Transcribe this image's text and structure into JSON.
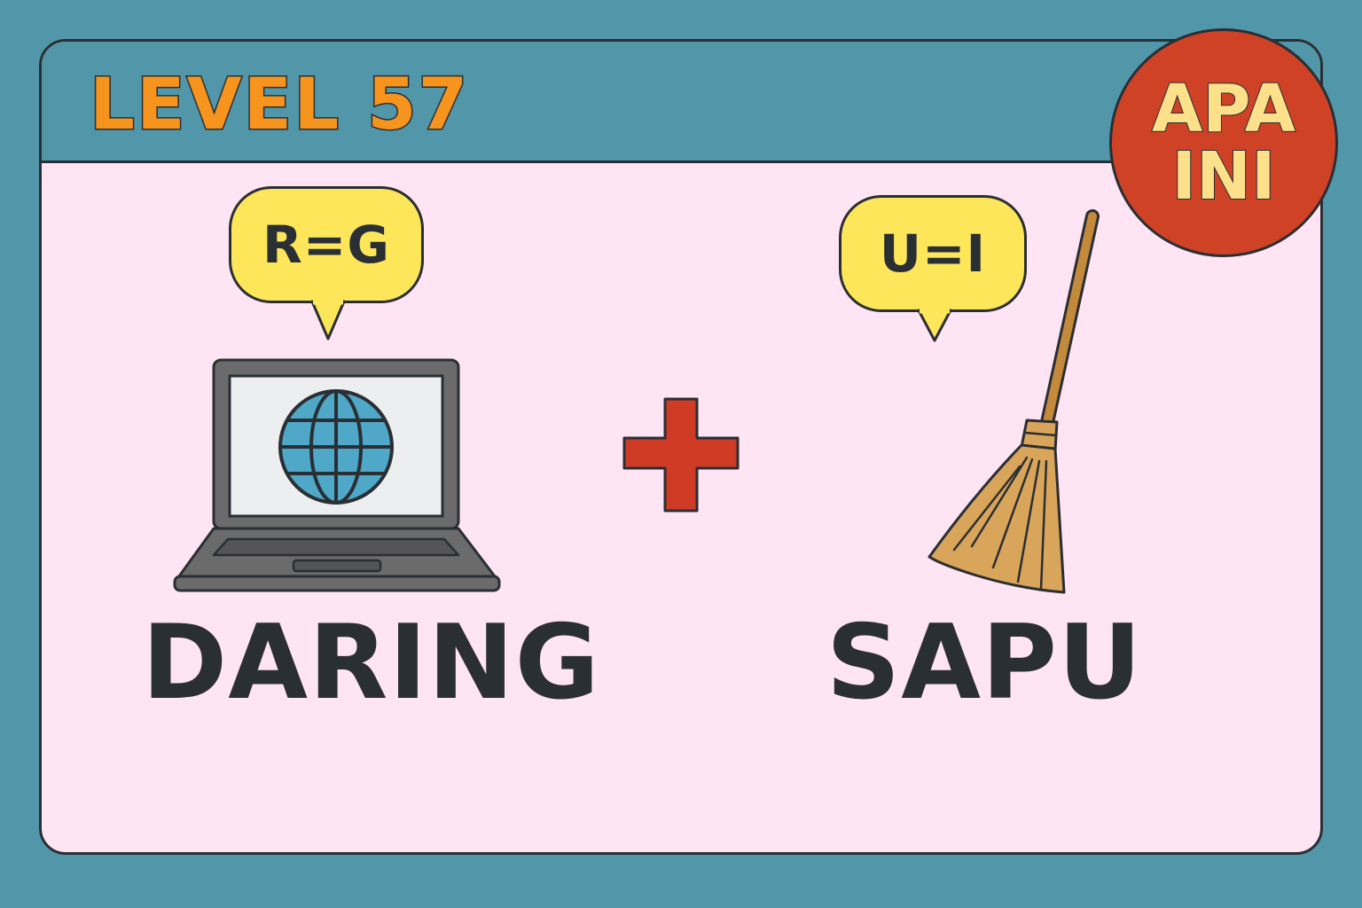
{
  "level": {
    "title": "LEVEL 57"
  },
  "badge": {
    "line1": "APA",
    "line2": "INI"
  },
  "clues": [
    {
      "hint": "R=G",
      "word": "DARING",
      "icon": "laptop-globe-icon"
    },
    {
      "hint": "U=I",
      "word": "SAPU",
      "icon": "broom-icon"
    }
  ],
  "operator": {
    "icon": "plus-icon"
  },
  "colors": {
    "background": "#5197a9",
    "card": "#ffe4f4",
    "title": "#f7941d",
    "badge": "#cf4226",
    "badge_text": "#fde08a",
    "bubble": "#fde65a",
    "plus": "#cf3b25",
    "text": "#2a2f33"
  }
}
